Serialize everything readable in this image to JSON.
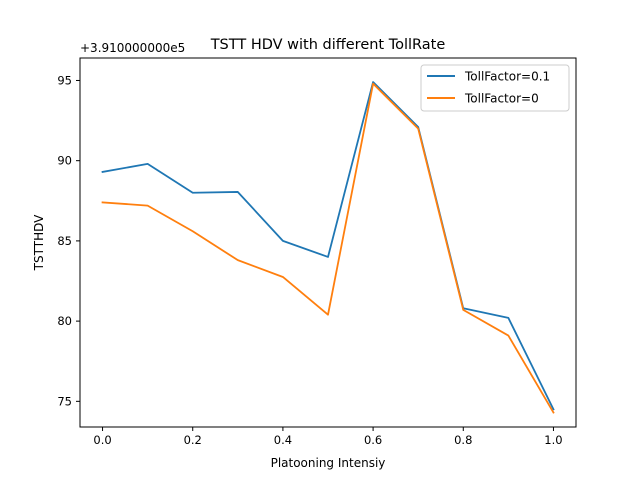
{
  "chart_data": {
    "type": "line",
    "title": "TSTT HDV with different TollRate",
    "xlabel": "Platooning Intensiy",
    "ylabel": "TSTTHDV",
    "offset_text": "+3.910000000e5",
    "xlim": [
      -0.05,
      1.05
    ],
    "ylim": [
      73.4,
      96.4
    ],
    "xticks": [
      0.0,
      0.2,
      0.4,
      0.6,
      0.8,
      1.0
    ],
    "xtick_labels": [
      "0.0",
      "0.2",
      "0.4",
      "0.6",
      "0.8",
      "1.0"
    ],
    "yticks": [
      75,
      80,
      85,
      90,
      95
    ],
    "ytick_labels": [
      "75",
      "80",
      "85",
      "90",
      "95"
    ],
    "grid": false,
    "legend_position": "top-right",
    "x": [
      0.0,
      0.1,
      0.2,
      0.3,
      0.4,
      0.5,
      0.6,
      0.7,
      0.8,
      0.9,
      1.0
    ],
    "series": [
      {
        "name": "TollFactor=0.1",
        "color": "#1f77b4",
        "values": [
          89.3,
          89.8,
          88.0,
          88.05,
          85.0,
          84.0,
          94.9,
          92.1,
          80.8,
          80.2,
          74.5
        ]
      },
      {
        "name": "TollFactor=0",
        "color": "#ff7f0e",
        "values": [
          87.4,
          87.2,
          85.6,
          83.8,
          82.75,
          80.4,
          94.8,
          92.0,
          80.7,
          79.1,
          74.3
        ]
      }
    ]
  }
}
